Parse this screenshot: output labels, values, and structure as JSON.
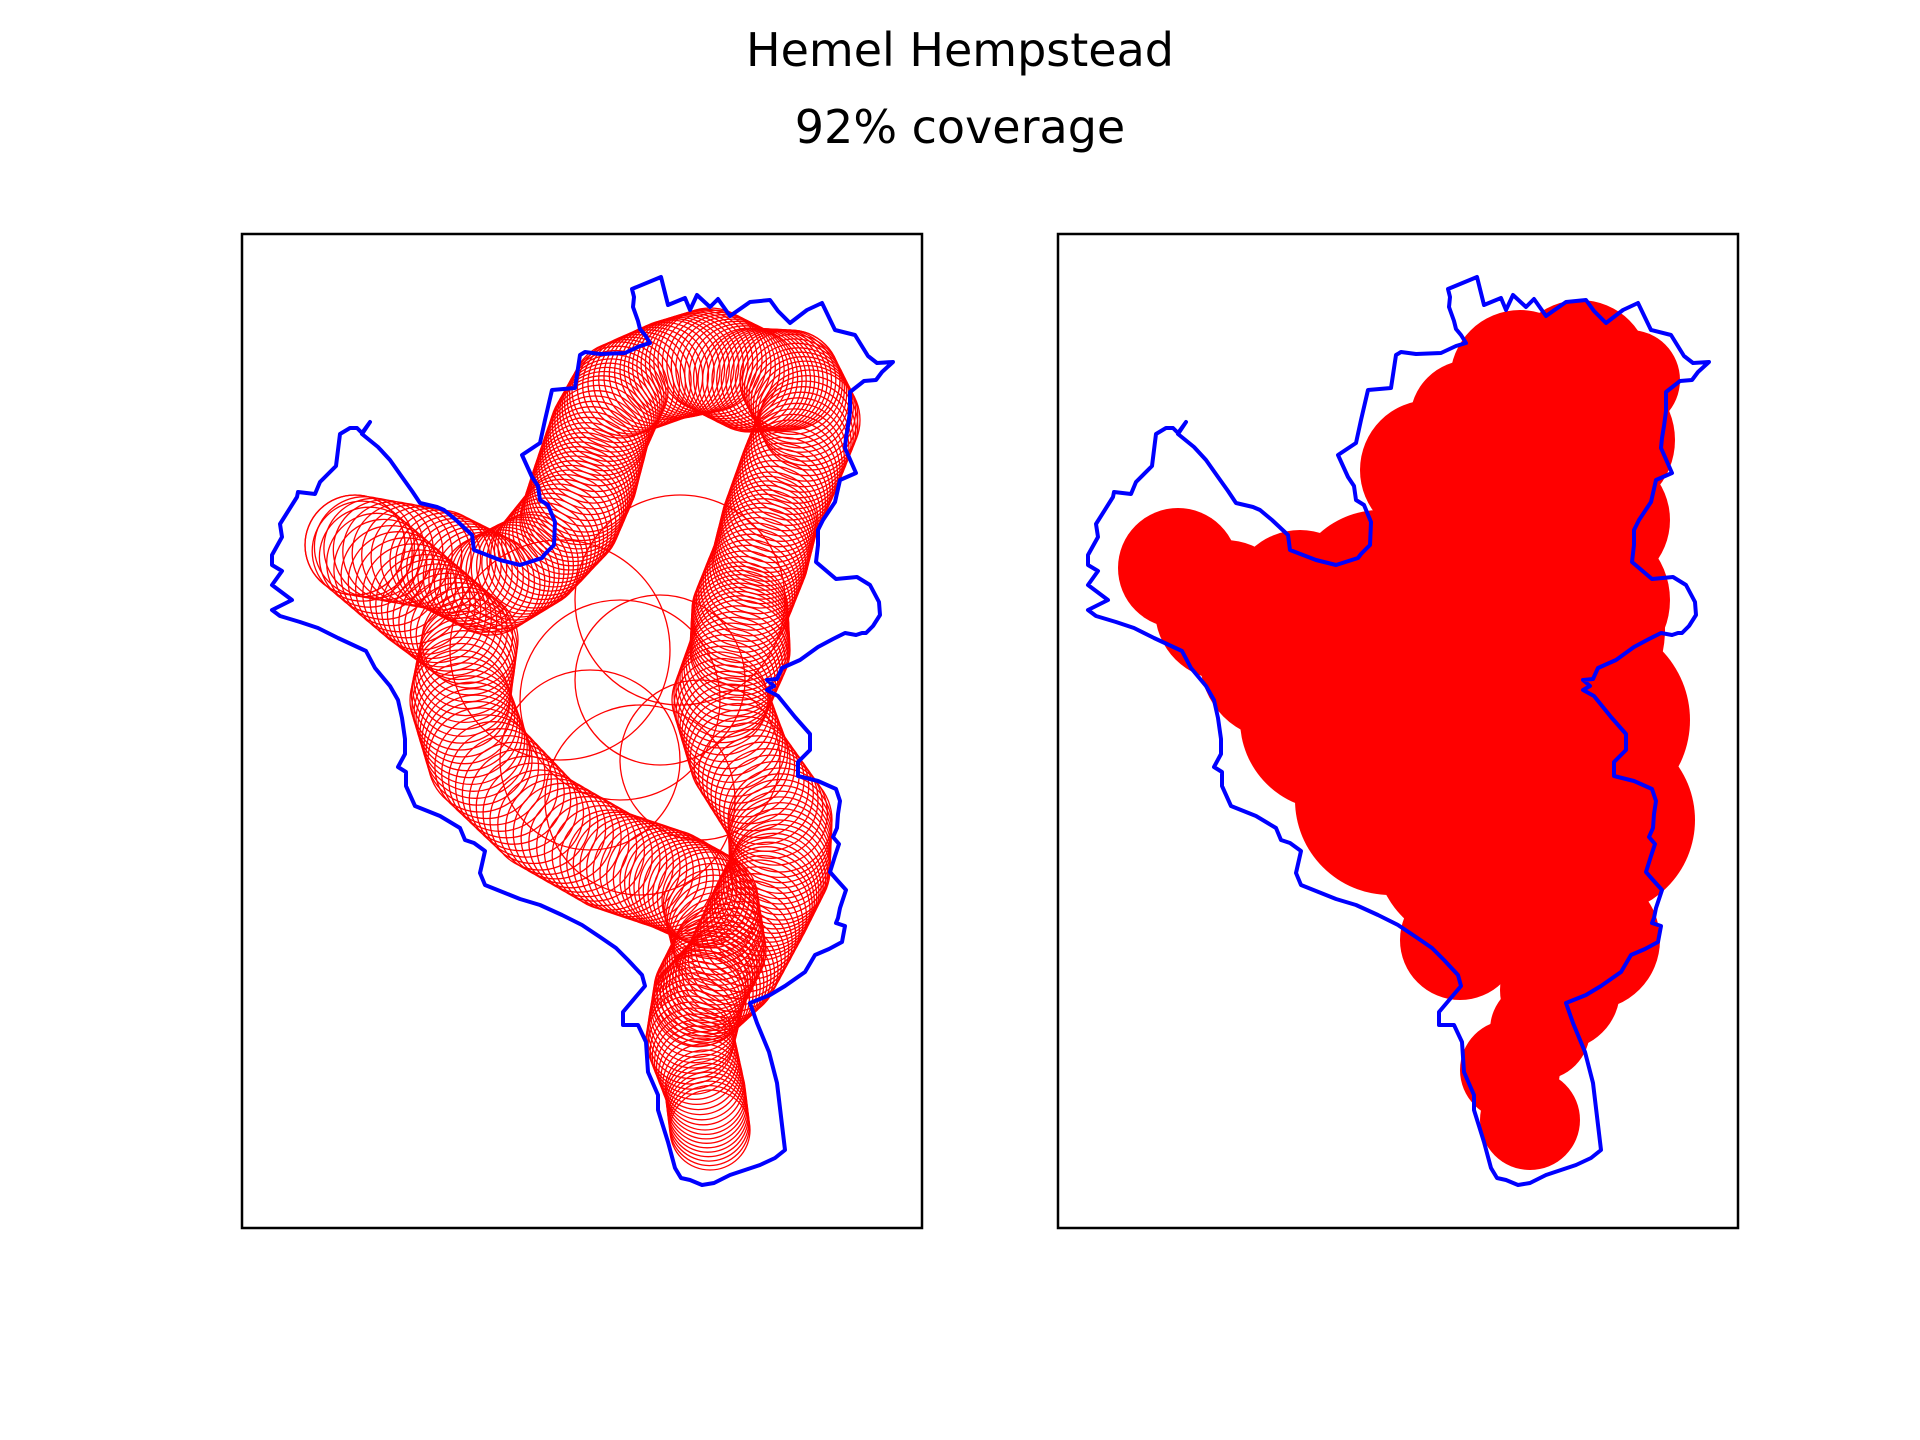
{
  "figure": {
    "title": "Hemel Hempstead",
    "subtitle": "92% coverage"
  },
  "colors": {
    "boundary": "#0000ff",
    "circles": "#ff0000",
    "frame": "#000000",
    "background": "#ffffff"
  },
  "chart_data": [
    {
      "type": "scatter",
      "panel": "left",
      "style": "outline circles",
      "title": "",
      "xlabel": "",
      "ylabel": "",
      "ticks": "none",
      "grid": false
    },
    {
      "type": "scatter",
      "panel": "right",
      "style": "filled circles",
      "title": "",
      "xlabel": "",
      "ylabel": "",
      "ticks": "none",
      "grid": false
    }
  ]
}
